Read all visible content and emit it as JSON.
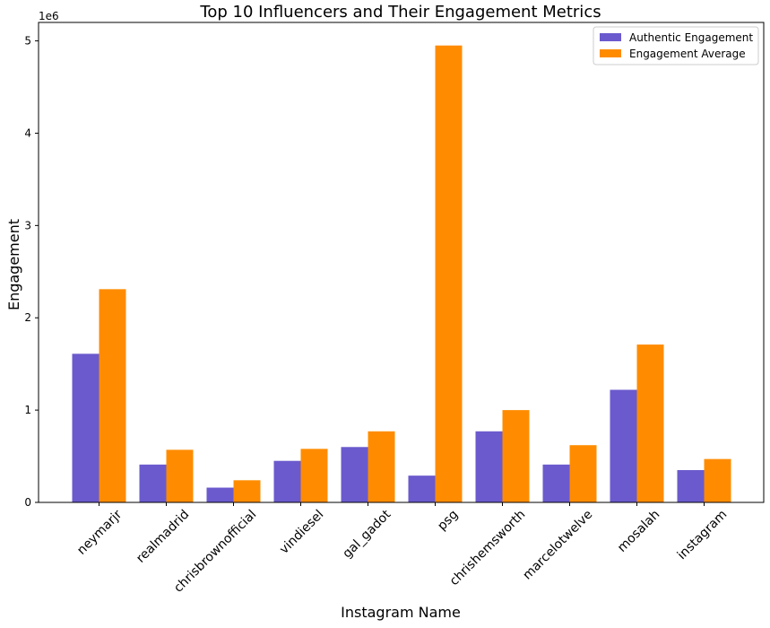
{
  "chart_data": {
    "type": "bar",
    "title": "Top 10 Influencers and Their Engagement Metrics",
    "xlabel": "Instagram Name",
    "ylabel": "Engagement",
    "y_offset_label": "1e6",
    "ylim": [
      0,
      5200000
    ],
    "yticks": [
      0,
      1000000,
      2000000,
      3000000,
      4000000,
      5000000
    ],
    "ytick_labels": [
      "0",
      "1",
      "2",
      "3",
      "4",
      "5"
    ],
    "grid": false,
    "legend_position": "top-right",
    "categories": [
      "neymarjr",
      "realmadrid",
      "chrisbrownofficial",
      "vindiesel",
      "gal_gadot",
      "psg",
      "chrishemsworth",
      "marcelotwelve",
      "mosalah",
      "instagram"
    ],
    "series": [
      {
        "name": "Authentic Engagement",
        "color": "#6a5acd",
        "values": [
          1610000,
          410000,
          160000,
          450000,
          600000,
          290000,
          770000,
          410000,
          1220000,
          350000
        ]
      },
      {
        "name": "Engagement Average",
        "color": "#ff8c00",
        "values": [
          2310000,
          570000,
          240000,
          580000,
          770000,
          4950000,
          1000000,
          620000,
          1710000,
          470000
        ]
      }
    ]
  }
}
